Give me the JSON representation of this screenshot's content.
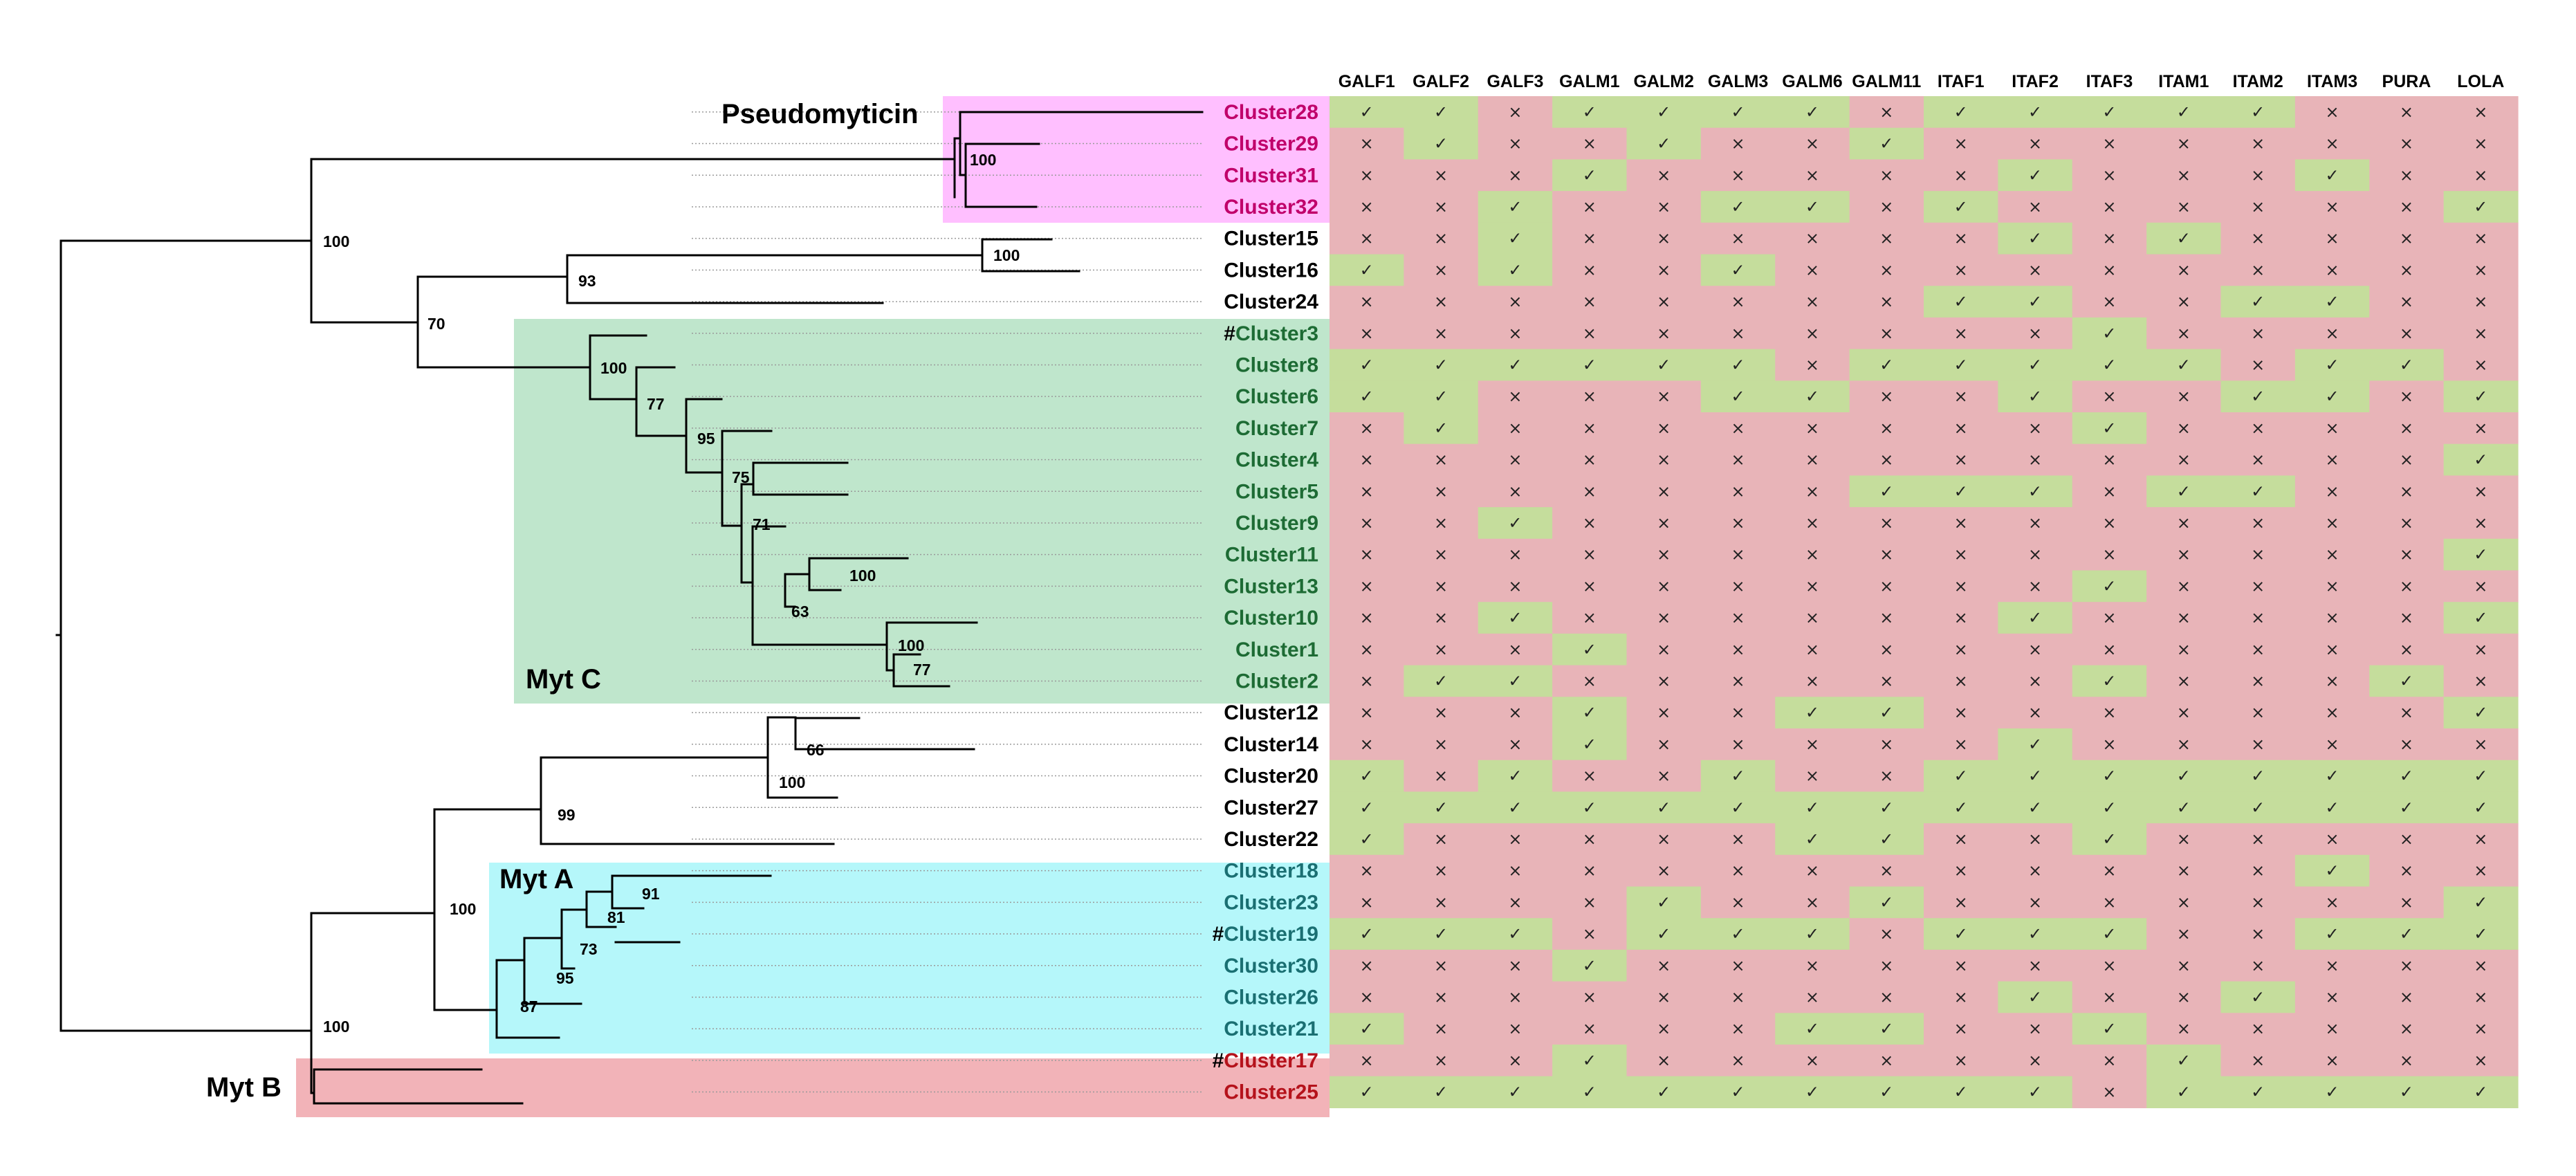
{
  "columns": [
    "GALF1",
    "GALF2",
    "GALF3",
    "GALM1",
    "GALM2",
    "GALM3",
    "GALM6",
    "GALM11",
    "ITAF1",
    "ITAF2",
    "ITAF3",
    "ITAM1",
    "ITAM2",
    "ITAM3",
    "PURA",
    "LOLA"
  ],
  "symbols": {
    "present": "✓",
    "absent": "×"
  },
  "colors": {
    "cell_present": "#c5dd9c",
    "cell_absent": "#e8b4b8",
    "pseudomyticin_box": "#ffbfff",
    "myt_c_box": "#bfe6cc",
    "myt_a_box": "#b5f7fa",
    "myt_b_box": "#f2b3b8",
    "label_pink": "#c0006a",
    "label_green": "#1d6b34",
    "label_teal": "#1a6f72",
    "label_red": "#b5121b"
  },
  "groups": {
    "pseudomyticin": "Pseudomyticin",
    "myt_c": "Myt C",
    "myt_a": "Myt A",
    "myt_b": "Myt B"
  },
  "clusters": [
    {
      "name": "Cluster28",
      "hash": false,
      "group": "pink",
      "row": "1101111011111000"
    },
    {
      "name": "Cluster29",
      "hash": false,
      "group": "pink",
      "row": "0100100100000000"
    },
    {
      "name": "Cluster31",
      "hash": false,
      "group": "pink",
      "row": "0001000001000100"
    },
    {
      "name": "Cluster32",
      "hash": false,
      "group": "pink",
      "row": "0010011010000001"
    },
    {
      "name": "Cluster15",
      "hash": false,
      "group": "black",
      "row": "0010000001010000"
    },
    {
      "name": "Cluster16",
      "hash": false,
      "group": "black",
      "row": "1010010000000000"
    },
    {
      "name": "Cluster24",
      "hash": false,
      "group": "black",
      "row": "0000000011001100"
    },
    {
      "name": "Cluster3",
      "hash": true,
      "group": "green",
      "row": "0000000000100000"
    },
    {
      "name": "Cluster8",
      "hash": false,
      "group": "green",
      "row": "1111110111110110"
    },
    {
      "name": "Cluster6",
      "hash": false,
      "group": "green",
      "row": "1100011001001101"
    },
    {
      "name": "Cluster7",
      "hash": false,
      "group": "green",
      "row": "0100000000100000"
    },
    {
      "name": "Cluster4",
      "hash": false,
      "group": "green",
      "row": "0000000000000001"
    },
    {
      "name": "Cluster5",
      "hash": false,
      "group": "green",
      "row": "0000000111011000"
    },
    {
      "name": "Cluster9",
      "hash": false,
      "group": "green",
      "row": "0010000000000000"
    },
    {
      "name": "Cluster11",
      "hash": false,
      "group": "green",
      "row": "0000000000000001"
    },
    {
      "name": "Cluster13",
      "hash": false,
      "group": "green",
      "row": "0000000000100000"
    },
    {
      "name": "Cluster10",
      "hash": false,
      "group": "green",
      "row": "0010000001000001"
    },
    {
      "name": "Cluster1",
      "hash": false,
      "group": "green",
      "row": "0001000000000000"
    },
    {
      "name": "Cluster2",
      "hash": false,
      "group": "green",
      "row": "0110000000100010"
    },
    {
      "name": "Cluster12",
      "hash": false,
      "group": "black",
      "row": "0001001100000001"
    },
    {
      "name": "Cluster14",
      "hash": false,
      "group": "black",
      "row": "0001000001000000"
    },
    {
      "name": "Cluster20",
      "hash": false,
      "group": "black",
      "row": "1010010011111111"
    },
    {
      "name": "Cluster27",
      "hash": false,
      "group": "black",
      "row": "1111111111111111"
    },
    {
      "name": "Cluster22",
      "hash": false,
      "group": "black",
      "row": "1000001100100000"
    },
    {
      "name": "Cluster18",
      "hash": false,
      "group": "teal",
      "row": "0000000000000100"
    },
    {
      "name": "Cluster23",
      "hash": false,
      "group": "teal",
      "row": "0000100100000001"
    },
    {
      "name": "Cluster19",
      "hash": true,
      "group": "teal",
      "row": "1110111011100111"
    },
    {
      "name": "Cluster30",
      "hash": false,
      "group": "teal",
      "row": "0001000000000000"
    },
    {
      "name": "Cluster26",
      "hash": false,
      "group": "teal",
      "row": "0000000001001000"
    },
    {
      "name": "Cluster21",
      "hash": false,
      "group": "teal",
      "row": "1000001100100000"
    },
    {
      "name": "Cluster17",
      "hash": true,
      "group": "red",
      "row": "0001000000010000"
    },
    {
      "name": "Cluster25",
      "hash": false,
      "group": "red",
      "row": "1111111111011111"
    }
  ],
  "bootstrap": {
    "n100_top": "100",
    "n100_pseudo": "100",
    "n100_c15": "100",
    "n93": "93",
    "n70": "70",
    "n100_c3": "100",
    "n77_c6": "77",
    "n95": "95",
    "n75": "75",
    "n71": "71",
    "n100_c11": "100",
    "n63": "63",
    "n100_c1": "100",
    "n77_c1": "77",
    "n66": "66",
    "n100_c12": "100",
    "n99": "99",
    "n100_a": "100",
    "n91": "91",
    "n81": "81",
    "n73": "73",
    "n95_a": "95",
    "n87": "87",
    "n100_bottom": "100"
  }
}
